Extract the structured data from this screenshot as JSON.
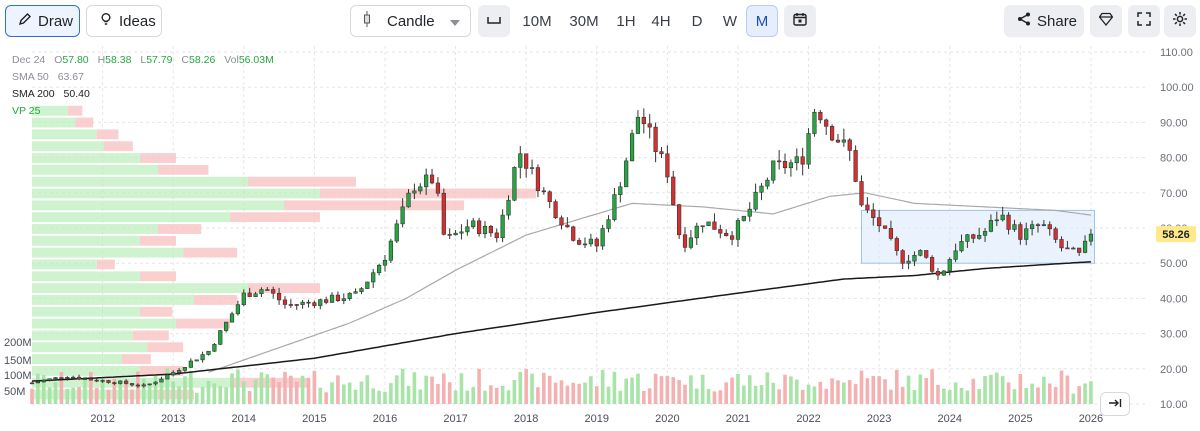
{
  "toolbar": {
    "draw_label": "Draw",
    "ideas_label": "Ideas",
    "chart_type": "Candle",
    "timeframes": [
      "10M",
      "30M",
      "1H",
      "4H",
      "D",
      "W",
      "M"
    ],
    "active_timeframe": "M",
    "share_label": "Share"
  },
  "legend": {
    "date": "Dec 24",
    "open_label": "O",
    "open": "57.80",
    "high_label": "H",
    "high": "58.38",
    "low_label": "L",
    "low": "57.79",
    "close_label": "C",
    "close": "58.26",
    "vol_label": "Vol",
    "vol": "56.03M",
    "sma50_label": "SMA 50",
    "sma50": "63.67",
    "sma200_label": "SMA 200",
    "sma200": "50.40",
    "vp_label": "VP 25"
  },
  "colors": {
    "up": "#26a641",
    "down": "#d92e2e",
    "up_volume": "#a8e4a8",
    "down_volume": "#f5b1b1",
    "sma50": "#a9a9a9",
    "sma200": "#1a1a1a",
    "price_badge": "#ffe98a",
    "range_box": "#9fc2ee"
  },
  "chart_data": {
    "type": "candlestick",
    "price_axis_ticks": [
      "110.00",
      "100.00",
      "90.00",
      "80.00",
      "70.00",
      "60.00",
      "50.00",
      "40.00",
      "30.00",
      "20.00",
      "10.00"
    ],
    "volume_axis_ticks": [
      "200M",
      "150M",
      "100M",
      "50M"
    ],
    "x_ticks": [
      "2012",
      "2013",
      "2014",
      "2015",
      "2016",
      "2017",
      "2018",
      "2019",
      "2020",
      "2021",
      "2022",
      "2023",
      "2024",
      "2025",
      "2026"
    ],
    "ylim": [
      10,
      110
    ],
    "xlim": [
      2011.0,
      2026.1
    ],
    "current_price": "58.26",
    "current_price_value": 58.26,
    "price_anchors": [
      [
        2011.0,
        16
      ],
      [
        2011.5,
        18
      ],
      [
        2011.8,
        17
      ],
      [
        2012.3,
        16
      ],
      [
        2012.6,
        15
      ],
      [
        2013.0,
        19
      ],
      [
        2013.5,
        25
      ],
      [
        2014.0,
        41
      ],
      [
        2014.3,
        43
      ],
      [
        2014.6,
        38
      ],
      [
        2015.0,
        39
      ],
      [
        2015.6,
        41
      ],
      [
        2016.0,
        52
      ],
      [
        2016.4,
        72
      ],
      [
        2016.7,
        74
      ],
      [
        2016.85,
        56
      ],
      [
        2017.2,
        61
      ],
      [
        2017.6,
        58
      ],
      [
        2017.9,
        82
      ],
      [
        2018.3,
        68
      ],
      [
        2018.7,
        57
      ],
      [
        2019.0,
        55
      ],
      [
        2019.3,
        71
      ],
      [
        2019.6,
        93
      ],
      [
        2019.8,
        84
      ],
      [
        2020.0,
        76
      ],
      [
        2020.2,
        55
      ],
      [
        2020.5,
        62
      ],
      [
        2020.9,
        58
      ],
      [
        2021.1,
        63
      ],
      [
        2021.5,
        77
      ],
      [
        2021.9,
        79
      ],
      [
        2022.1,
        95
      ],
      [
        2022.3,
        88
      ],
      [
        2022.6,
        81
      ],
      [
        2022.75,
        66
      ],
      [
        2023.0,
        61
      ],
      [
        2023.3,
        51
      ],
      [
        2023.6,
        53
      ],
      [
        2023.85,
        46
      ],
      [
        2024.1,
        55
      ],
      [
        2024.5,
        59
      ],
      [
        2024.7,
        64
      ],
      [
        2025.0,
        58
      ],
      [
        2025.3,
        61
      ],
      [
        2025.6,
        54
      ],
      [
        2025.85,
        52
      ],
      [
        2026.0,
        58.26
      ]
    ],
    "sma50_anchors": [
      [
        2013.5,
        19
      ],
      [
        2014.5,
        26
      ],
      [
        2015.5,
        33
      ],
      [
        2016.3,
        40
      ],
      [
        2017.0,
        48
      ],
      [
        2018.0,
        58
      ],
      [
        2019.0,
        64
      ],
      [
        2019.5,
        67
      ],
      [
        2020.5,
        66
      ],
      [
        2021.5,
        64
      ],
      [
        2022.3,
        69
      ],
      [
        2022.8,
        70
      ],
      [
        2023.5,
        67
      ],
      [
        2024.5,
        66
      ],
      [
        2025.5,
        65
      ],
      [
        2026.0,
        63.67
      ]
    ],
    "sma200_anchors": [
      [
        2011.0,
        16.5
      ],
      [
        2013.0,
        18.5
      ],
      [
        2015.0,
        23
      ],
      [
        2017.0,
        30
      ],
      [
        2019.0,
        36
      ],
      [
        2021.0,
        41.5
      ],
      [
        2022.5,
        45.5
      ],
      [
        2023.5,
        46.5
      ],
      [
        2024.5,
        48.5
      ],
      [
        2025.5,
        49.8
      ],
      [
        2026.0,
        50.4
      ]
    ],
    "range_box": {
      "x_start": 2022.75,
      "x_end": 2026.05,
      "y_low": 50,
      "y_high": 65
    },
    "volume_profile": {
      "bin_low": 11,
      "bin_high": 95,
      "bins": 25,
      "buy": [
        0.35,
        0.55,
        0.3,
        0.25,
        0.32,
        0.28,
        0.4,
        0.3,
        0.45,
        0.6,
        0.3,
        0.18,
        0.42,
        0.3,
        0.35,
        0.55,
        0.7,
        0.8,
        0.6,
        0.35,
        0.3,
        0.2,
        0.18,
        0.12,
        0.1
      ],
      "sell": [
        0.1,
        0.22,
        0.12,
        0.08,
        0.1,
        0.1,
        0.15,
        0.09,
        0.12,
        0.2,
        0.1,
        0.05,
        0.15,
        0.1,
        0.12,
        0.25,
        0.5,
        0.6,
        0.3,
        0.14,
        0.1,
        0.08,
        0.06,
        0.05,
        0.04
      ]
    }
  }
}
